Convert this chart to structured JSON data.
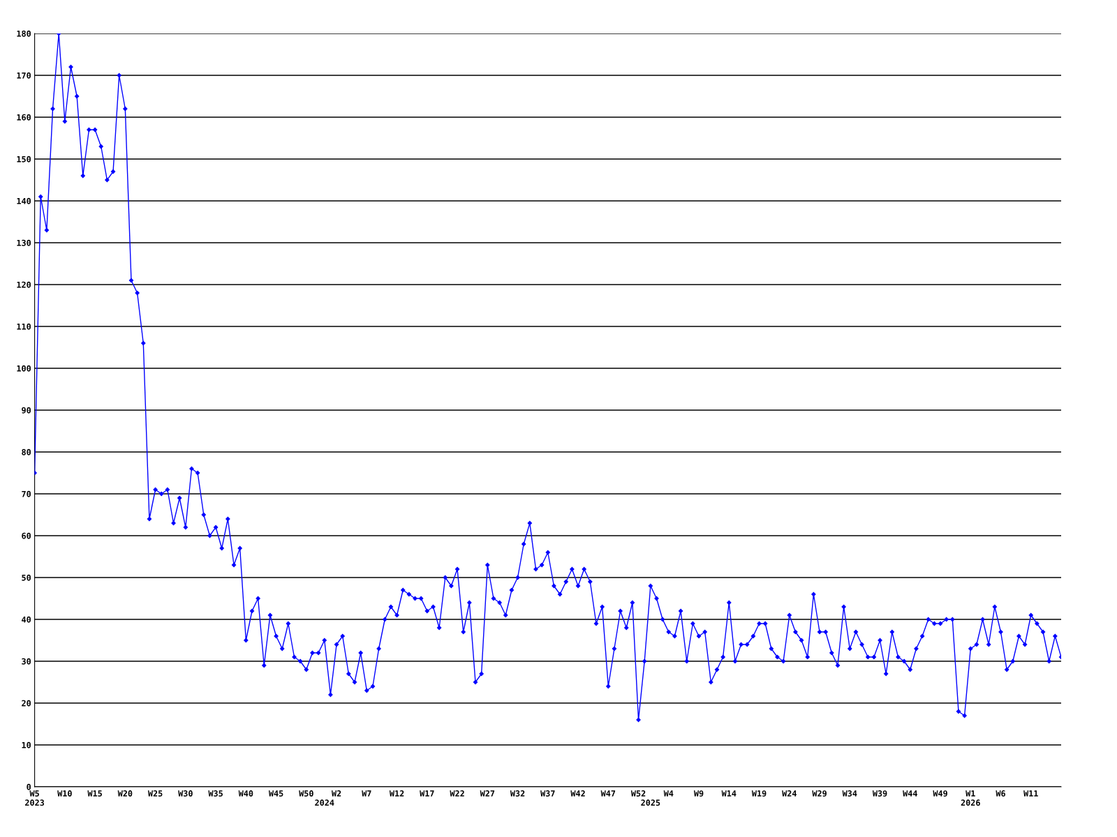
{
  "chart_data": {
    "type": "line",
    "categories": [
      "W5\n2023",
      null,
      null,
      null,
      null,
      "W10",
      null,
      null,
      null,
      null,
      "W15",
      null,
      null,
      null,
      null,
      "W20",
      null,
      null,
      null,
      null,
      "W25",
      null,
      null,
      null,
      null,
      "W30",
      null,
      null,
      null,
      null,
      "W35",
      null,
      null,
      null,
      null,
      "W40",
      null,
      null,
      null,
      null,
      "W45",
      null,
      null,
      null,
      null,
      "W50",
      null,
      null,
      "\n2024",
      null,
      "W2",
      null,
      null,
      null,
      null,
      "W7",
      null,
      null,
      null,
      null,
      "W12",
      null,
      null,
      null,
      null,
      "W17",
      null,
      null,
      null,
      null,
      "W22",
      null,
      null,
      null,
      null,
      "W27",
      null,
      null,
      null,
      null,
      "W32",
      null,
      null,
      null,
      null,
      "W37",
      null,
      null,
      null,
      null,
      "W42",
      null,
      null,
      null,
      null,
      "W47",
      null,
      null,
      null,
      null,
      "W52",
      null,
      "\n2025",
      null,
      null,
      "W4",
      null,
      null,
      null,
      null,
      "W9",
      null,
      null,
      null,
      null,
      "W14",
      null,
      null,
      null,
      null,
      "W19",
      null,
      null,
      null,
      null,
      "W24",
      null,
      null,
      null,
      null,
      "W29",
      null,
      null,
      null,
      null,
      "W34",
      null,
      null,
      null,
      null,
      "W39",
      null,
      null,
      null,
      null,
      "W44",
      null,
      null,
      null,
      null,
      "W49",
      null,
      null,
      null,
      null,
      "W1\n2026",
      null,
      null,
      null,
      null,
      "W6",
      null,
      null,
      null,
      null,
      "W11",
      null,
      null,
      null,
      null,
      null
    ],
    "series": [
      {
        "color": "#0000ff",
        "values": [
          75,
          141,
          133,
          162,
          180,
          159,
          172,
          165,
          146,
          157,
          157,
          153,
          145,
          147,
          170,
          162,
          121,
          118,
          106,
          64,
          71,
          70,
          71,
          63,
          69,
          62,
          76,
          75,
          65,
          60,
          62,
          57,
          64,
          53,
          57,
          35,
          42,
          45,
          29,
          41,
          36,
          33,
          39,
          31,
          30,
          28,
          32,
          32,
          35,
          22,
          34,
          36,
          27,
          25,
          32,
          23,
          24,
          33,
          40,
          43,
          41,
          47,
          46,
          45,
          45,
          42,
          43,
          38,
          50,
          48,
          52,
          37,
          44,
          25,
          27,
          53,
          45,
          44,
          41,
          47,
          50,
          58,
          63,
          52,
          53,
          56,
          48,
          46,
          49,
          52,
          48,
          52,
          49,
          39,
          43,
          24,
          33,
          42,
          38,
          44,
          16,
          30,
          48,
          45,
          40,
          37,
          36,
          42,
          30,
          39,
          36,
          37,
          25,
          28,
          31,
          44,
          30,
          34,
          34,
          36,
          39,
          39,
          33,
          31,
          30,
          41,
          37,
          35,
          31,
          46,
          37,
          37,
          32,
          29,
          43,
          33,
          37,
          34,
          31,
          31,
          35,
          27,
          37,
          31,
          30,
          28,
          33,
          36,
          40,
          39,
          39,
          40,
          40,
          18,
          17,
          33,
          34,
          40,
          34,
          43,
          37,
          28,
          30,
          36,
          34,
          41,
          39,
          37,
          30,
          36,
          31
        ]
      }
    ],
    "ylim": [
      0,
      180
    ],
    "yticks": [
      0,
      10,
      20,
      30,
      40,
      50,
      60,
      70,
      80,
      90,
      100,
      110,
      120,
      130,
      140,
      150,
      160,
      170,
      180
    ],
    "grid": "y",
    "marker": "diamond",
    "line_style": "solid",
    "legend": false
  }
}
